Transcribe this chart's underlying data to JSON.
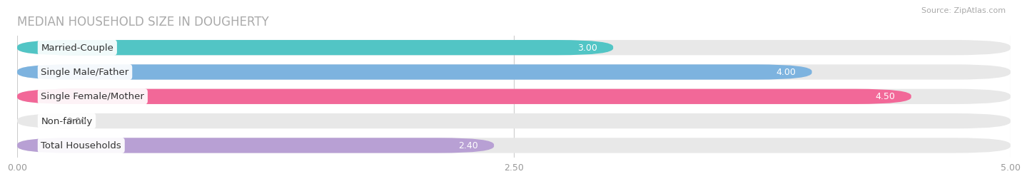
{
  "title": "MEDIAN HOUSEHOLD SIZE IN DOUGHERTY",
  "source": "Source: ZipAtlas.com",
  "categories": [
    "Married-Couple",
    "Single Male/Father",
    "Single Female/Mother",
    "Non-family",
    "Total Households"
  ],
  "values": [
    3.0,
    4.0,
    4.5,
    0.0,
    2.4
  ],
  "bar_colors": [
    "#52c5c5",
    "#7db3df",
    "#f26898",
    "#f5c98a",
    "#b8a0d4"
  ],
  "bar_bg_color": "#e8e8e8",
  "xlim": [
    0,
    5.0
  ],
  "xticks": [
    0.0,
    2.5,
    5.0
  ],
  "xtick_labels": [
    "0.00",
    "2.50",
    "5.00"
  ],
  "value_labels": [
    "3.00",
    "4.00",
    "4.50",
    "0.00",
    "2.40"
  ],
  "background_color": "#ffffff",
  "title_color": "#aaaaaa",
  "title_fontsize": 12,
  "label_fontsize": 9.5,
  "value_fontsize": 9
}
